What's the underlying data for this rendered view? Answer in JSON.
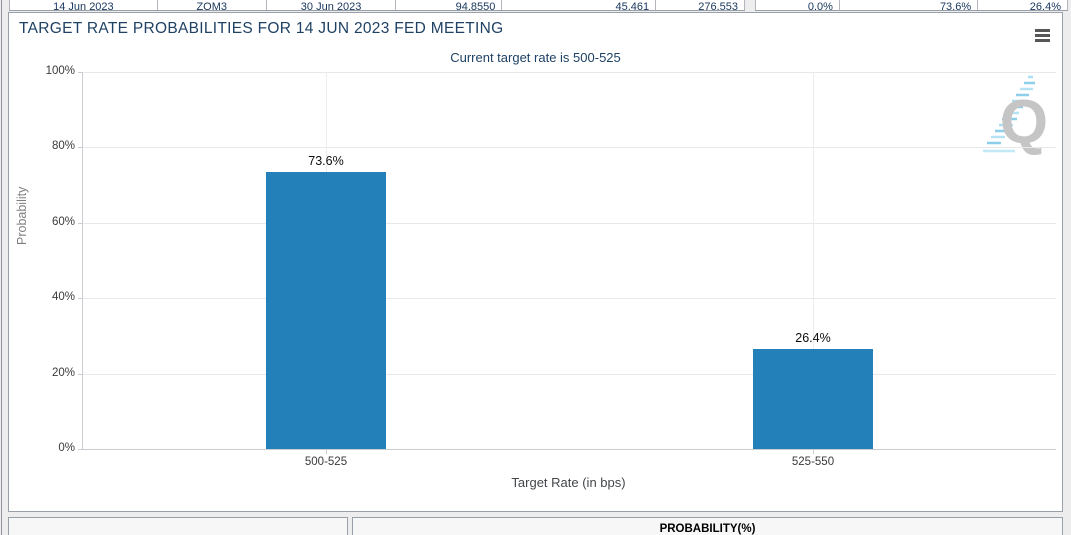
{
  "top_strip": {
    "left_cells": [
      "14 Jun 2023",
      "ZQM3",
      "30 Jun 2023",
      "94.8550",
      "45,461",
      "276,553"
    ],
    "right_cells": [
      "0.0%",
      "73.6%",
      "26.4%"
    ]
  },
  "chart_panel": {
    "title": "TARGET RATE PROBABILITIES FOR 14 JUN 2023 FED MEETING",
    "subtitle": "Current target rate is 500-525",
    "watermark_letter": "Q"
  },
  "chart_data": {
    "type": "bar",
    "title": "TARGET RATE PROBABILITIES FOR 14 JUN 2023 FED MEETING",
    "subtitle": "Current target rate is 500-525",
    "categories": [
      "500-525",
      "525-550"
    ],
    "values": [
      73.6,
      26.4
    ],
    "value_labels": [
      "73.6%",
      "26.4%"
    ],
    "xlabel": "Target Rate (in bps)",
    "ylabel": "Probability",
    "ylim": [
      0,
      100
    ],
    "yticks": [
      0,
      20,
      40,
      60,
      80,
      100
    ],
    "ytick_labels": [
      "0%",
      "20%",
      "40%",
      "60%",
      "80%",
      "100%"
    ],
    "grid": true,
    "legend": "none",
    "bar_color": "#2380b9"
  },
  "bottom_strip": {
    "right_header": "PROBABILITY(%)"
  },
  "colors": {
    "bar": "#2380b9",
    "title_text": "#1e4164",
    "page_background": "#ededee",
    "panel_border": "#9aa0a8",
    "gridline": "#e8e8e8"
  }
}
